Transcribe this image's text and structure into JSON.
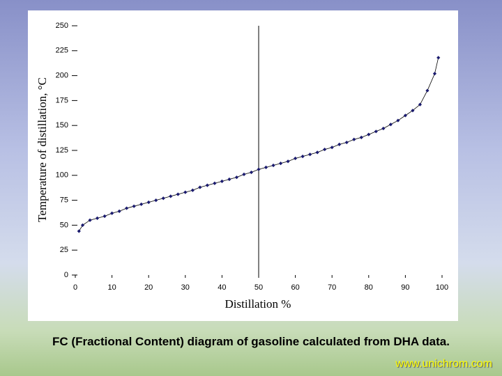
{
  "chart_data": {
    "type": "line",
    "xlabel": "Distillation %",
    "ylabel": "Temperature of distillation, °C",
    "x": [
      1,
      2,
      4,
      6,
      8,
      10,
      12,
      14,
      16,
      18,
      20,
      22,
      24,
      26,
      28,
      30,
      32,
      34,
      36,
      38,
      40,
      42,
      44,
      46,
      48,
      50,
      52,
      54,
      56,
      58,
      60,
      62,
      64,
      66,
      68,
      70,
      72,
      74,
      76,
      78,
      80,
      82,
      84,
      86,
      88,
      90,
      92,
      94,
      96,
      98,
      99
    ],
    "series": [
      {
        "color": "#1a1a6e",
        "values": [
          44,
          50,
          55,
          57,
          59,
          62,
          64,
          67,
          69,
          71,
          73,
          75,
          77,
          79,
          81,
          83,
          85,
          88,
          90,
          92,
          94,
          96,
          98,
          101,
          103,
          106,
          108,
          110,
          112,
          114,
          117,
          119,
          121,
          123,
          126,
          128,
          131,
          133,
          136,
          138,
          141,
          144,
          147,
          151,
          155,
          160,
          165,
          171,
          185,
          202,
          218
        ]
      }
    ],
    "xlim": [
      0,
      100
    ],
    "xticks": [
      0,
      10,
      20,
      30,
      40,
      50,
      60,
      70,
      80,
      90,
      100
    ],
    "ylim": [
      0,
      250
    ],
    "yticks": [
      0,
      25,
      50,
      75,
      100,
      125,
      150,
      175,
      200,
      225,
      250
    ],
    "vline": 50
  },
  "caption": "FC (Fractional Content) diagram of gasoline calculated from DHA data.",
  "footer": "www.unichrom.com"
}
